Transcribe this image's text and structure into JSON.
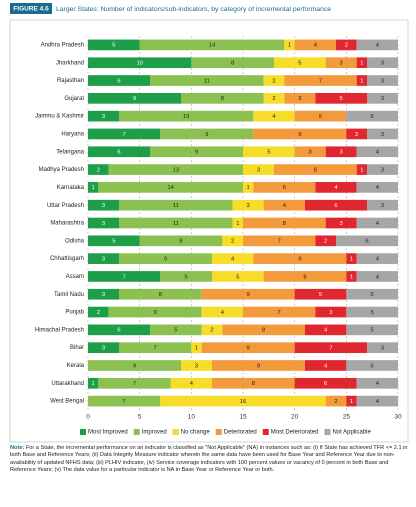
{
  "chart_data": {
    "type": "stacked-bar",
    "orientation": "horizontal",
    "figure_label": "FIGURE 4.6",
    "title": "Larger States: Number of indicators/sub-indicators, by category of incremental performance",
    "categories": [
      "Andhra Pradesh",
      "Jharkhand",
      "Rajasthan",
      "Gujarat",
      "Jammu & Kashmir",
      "Haryana",
      "Telangana",
      "Madhya Pradesh",
      "Karnataka",
      "Uttar Pradesh",
      "Maharashtra",
      "Odisha",
      "Chhattisgarh",
      "Assam",
      "Tamil Nadu",
      "Punjab",
      "Himachal Pradesh",
      "Bihar",
      "Kerala",
      "Uttarakhand",
      "West Bengal"
    ],
    "series": [
      {
        "name": "Most Improved",
        "color": "#1e9e48",
        "values": [
          5,
          10,
          6,
          9,
          3,
          7,
          6,
          2,
          1,
          3,
          3,
          5,
          3,
          7,
          3,
          2,
          6,
          3,
          0,
          1,
          0
        ]
      },
      {
        "name": "Improved",
        "color": "#8cc152",
        "values": [
          14,
          8,
          11,
          8,
          13,
          9,
          9,
          13,
          14,
          11,
          11,
          8,
          9,
          5,
          8,
          9,
          5,
          7,
          9,
          7,
          7
        ]
      },
      {
        "name": "No change",
        "color": "#f7dc2a",
        "values": [
          1,
          5,
          2,
          2,
          4,
          0,
          5,
          3,
          1,
          3,
          1,
          2,
          4,
          5,
          0,
          4,
          2,
          1,
          3,
          4,
          16
        ]
      },
      {
        "name": "Deteriorated",
        "color": "#f39a3c",
        "values": [
          4,
          3,
          7,
          3,
          5,
          9,
          3,
          8,
          6,
          4,
          8,
          7,
          9,
          8,
          9,
          7,
          8,
          9,
          9,
          8,
          2
        ]
      },
      {
        "name": "Most Deteriorated",
        "color": "#e0262e",
        "values": [
          2,
          1,
          1,
          5,
          0,
          2,
          3,
          1,
          4,
          6,
          3,
          2,
          1,
          1,
          5,
          3,
          4,
          7,
          4,
          6,
          1
        ]
      },
      {
        "name": "Not Applicable",
        "color": "#a6a6a6",
        "values": [
          4,
          3,
          3,
          3,
          5,
          3,
          4,
          3,
          4,
          3,
          4,
          6,
          4,
          4,
          5,
          5,
          5,
          3,
          5,
          4,
          4
        ]
      }
    ],
    "xlim": [
      0,
      30
    ],
    "xticks": [
      0,
      5,
      10,
      15,
      20,
      25,
      30
    ],
    "grid": true,
    "note_label": "Note:",
    "note": "For a State, the incremental performance on an indicator is classified as \"Not Applicable\" (NA) in instances such as: (i) If State has achieved TFR <= 2.1 in both Base and Reference Years; (ii) Data Integrity Measure indicator wherein the same data have been used for Base Year and Reference Year due to non-availability of updated NFHS data; (iii) PLHIV indicator, (iv) Service coverage indicators with 100 percent values or vacancy of 0 percent in both Base and Reference Years; (v) The data value for a particular indicator is NA in Base Year or Reference Year or both."
  }
}
